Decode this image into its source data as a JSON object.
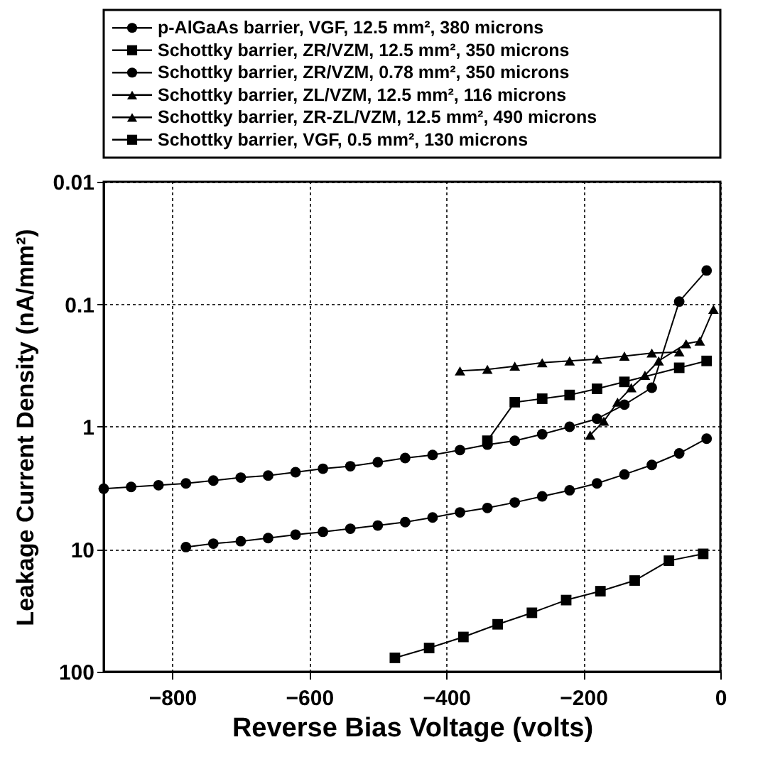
{
  "chart_data": {
    "type": "line",
    "xlabel": "Reverse Bias Voltage (volts)",
    "ylabel": "Leakage Current Density (nA/mm²)",
    "xlim": [
      -900,
      0
    ],
    "xticks": [
      -800,
      -600,
      -400,
      -200,
      0
    ],
    "ylim": [
      100,
      0.01
    ],
    "yticks": [
      0.01,
      0.1,
      1,
      10,
      100
    ],
    "log": true,
    "grid": true,
    "legend": "top",
    "series": [
      {
        "name": "p-AlGaAs barrier, VGF, 12.5 mm², 380 microns",
        "color": "#000000",
        "marker": "circle",
        "x": [
          -900,
          -860,
          -820,
          -780,
          -740,
          -700,
          -660,
          -620,
          -580,
          -540,
          -500,
          -460,
          -420,
          -380,
          -340,
          -300,
          -260,
          -220,
          -180,
          -140,
          -100,
          -60,
          -20
        ],
        "values": [
          3.2,
          3.1,
          3.0,
          2.9,
          2.75,
          2.6,
          2.5,
          2.35,
          2.2,
          2.1,
          1.95,
          1.8,
          1.7,
          1.55,
          1.4,
          1.3,
          1.15,
          1.0,
          0.86,
          0.66,
          0.48,
          0.095,
          0.053
        ]
      },
      {
        "name": "Schottky barrier, ZR/VZM, 12.5 mm², 350 microns",
        "color": "#000000",
        "marker": "square",
        "x": [
          -340,
          -300,
          -260,
          -220,
          -180,
          -140,
          -60,
          -20
        ],
        "values": [
          1.3,
          0.63,
          0.59,
          0.55,
          0.49,
          0.43,
          0.33,
          0.29
        ]
      },
      {
        "name": "Schottky barrier, ZR/VZM, 0.78 mm², 350 microns",
        "color": "#000000",
        "marker": "circle",
        "x": [
          -780,
          -740,
          -700,
          -660,
          -620,
          -580,
          -540,
          -500,
          -460,
          -420,
          -380,
          -340,
          -300,
          -260,
          -220,
          -180,
          -140,
          -100,
          -60,
          -20
        ],
        "values": [
          9.6,
          9.0,
          8.6,
          8.1,
          7.6,
          7.2,
          6.8,
          6.4,
          6.0,
          5.5,
          5.0,
          4.6,
          4.15,
          3.7,
          3.3,
          2.9,
          2.45,
          2.05,
          1.65,
          1.25
        ]
      },
      {
        "name": "Schottky barrier, ZL/VZM, 12.5 mm², 116 microns",
        "color": "#000000",
        "marker": "triangle",
        "x": [
          -190,
          -170,
          -150,
          -130,
          -110,
          -90,
          -50,
          -30,
          -10
        ],
        "values": [
          1.17,
          0.9,
          0.63,
          0.48,
          0.38,
          0.29,
          0.21,
          0.2,
          0.11
        ]
      },
      {
        "name": "Schottky barrier, ZR-ZL/VZM, 12.5 mm², 490 microns",
        "color": "#000000",
        "marker": "triangle",
        "x": [
          -380,
          -340,
          -300,
          -260,
          -220,
          -180,
          -140,
          -100,
          -60
        ],
        "values": [
          0.35,
          0.34,
          0.32,
          0.3,
          0.29,
          0.28,
          0.265,
          0.25,
          0.245
        ]
      },
      {
        "name": "Schottky barrier, VGF, 0.5 mm², 130 microns",
        "color": "#000000",
        "marker": "square",
        "x": [
          -475,
          -425,
          -375,
          -325,
          -275,
          -225,
          -175,
          -125,
          -75,
          -25
        ],
        "values": [
          77,
          64,
          52,
          41,
          33,
          26,
          22,
          18,
          12.4,
          10.9
        ]
      }
    ]
  }
}
